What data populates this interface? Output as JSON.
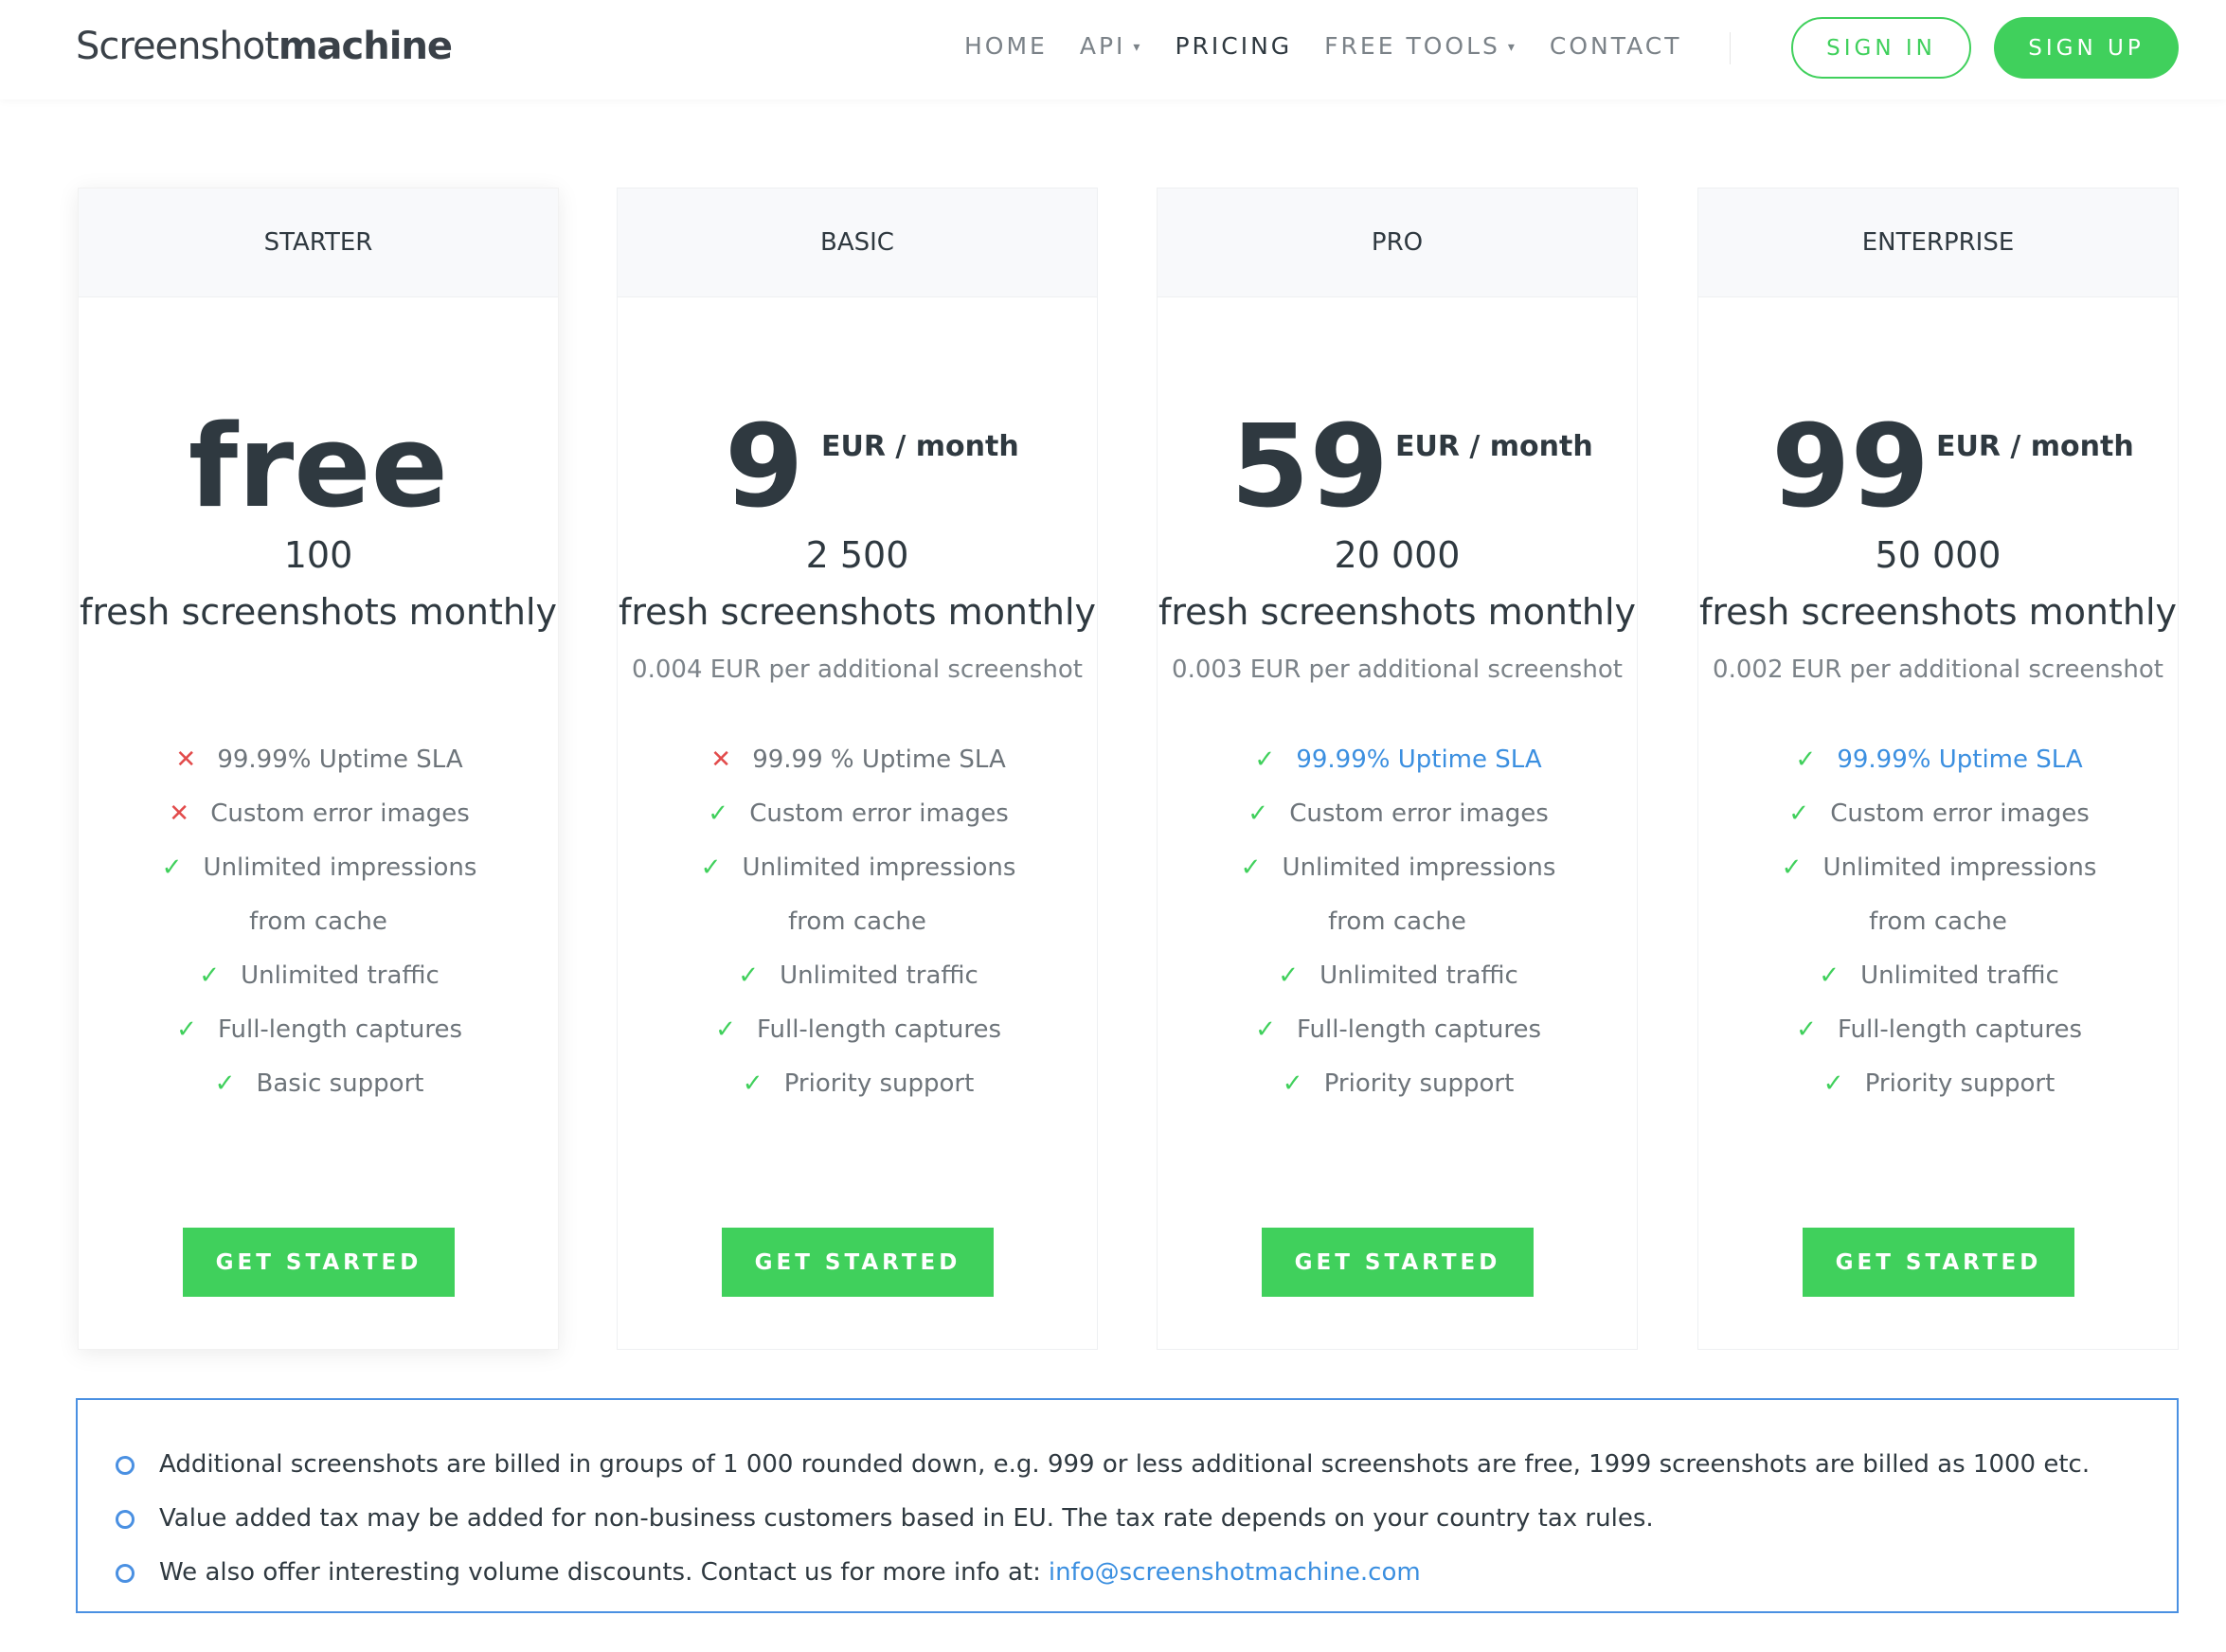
{
  "header": {
    "logo_light": "Screenshot",
    "logo_bold": "machine",
    "nav": [
      {
        "label": "HOME"
      },
      {
        "label": "API",
        "dropdown": true
      },
      {
        "label": "PRICING",
        "active": true
      },
      {
        "label": "FREE TOOLS",
        "dropdown": true
      },
      {
        "label": "CONTACT"
      }
    ],
    "sign_in": "SIGN IN",
    "sign_up": "SIGN UP"
  },
  "colors": {
    "accent_green": "#40d05c",
    "link_blue": "#3b8fe0",
    "cross_red": "#e24b4b"
  },
  "plans": [
    {
      "name": "STARTER",
      "price": "free",
      "unit": "",
      "count": "100",
      "fresh": "fresh screenshots monthly",
      "extra": "",
      "button": "GET STARTED",
      "features": [
        {
          "text": "99.99% Uptime SLA",
          "icon": "cross"
        },
        {
          "text": "Custom error images",
          "icon": "cross"
        },
        {
          "text": "Unlimited impressions",
          "icon": "check"
        },
        {
          "text": "from cache",
          "icon": ""
        },
        {
          "text": "Unlimited traffic",
          "icon": "check"
        },
        {
          "text": "Full-length captures",
          "icon": "check"
        },
        {
          "text": "Basic support",
          "icon": "check"
        }
      ]
    },
    {
      "name": "BASIC",
      "price": "9",
      "unit": "EUR / month",
      "count": "2 500",
      "fresh": "fresh screenshots monthly",
      "extra": "0.004 EUR per additional screenshot",
      "button": "GET STARTED",
      "features": [
        {
          "text": "99.99 % Uptime SLA",
          "icon": "cross"
        },
        {
          "text": "Custom error images",
          "icon": "check"
        },
        {
          "text": "Unlimited impressions",
          "icon": "check"
        },
        {
          "text": "from cache",
          "icon": ""
        },
        {
          "text": "Unlimited traffic",
          "icon": "check"
        },
        {
          "text": "Full-length captures",
          "icon": "check"
        },
        {
          "text": "Priority support",
          "icon": "check"
        }
      ]
    },
    {
      "name": "PRO",
      "price": "59",
      "unit": "EUR / month",
      "count": "20 000",
      "fresh": "fresh screenshots monthly",
      "extra": "0.003 EUR per additional screenshot",
      "button": "GET STARTED",
      "features": [
        {
          "text": "99.99% Uptime SLA",
          "icon": "check",
          "link": true
        },
        {
          "text": "Custom error images",
          "icon": "check"
        },
        {
          "text": "Unlimited impressions",
          "icon": "check"
        },
        {
          "text": "from cache",
          "icon": ""
        },
        {
          "text": "Unlimited traffic",
          "icon": "check"
        },
        {
          "text": "Full-length captures",
          "icon": "check"
        },
        {
          "text": "Priority support",
          "icon": "check"
        }
      ]
    },
    {
      "name": "ENTERPRISE",
      "price": "99",
      "unit": "EUR / month",
      "count": "50 000",
      "fresh": "fresh screenshots monthly",
      "extra": "0.002 EUR per additional screenshot",
      "button": "GET STARTED",
      "features": [
        {
          "text": "99.99% Uptime SLA",
          "icon": "check",
          "link": true
        },
        {
          "text": "Custom error images",
          "icon": "check"
        },
        {
          "text": "Unlimited impressions",
          "icon": "check"
        },
        {
          "text": "from cache",
          "icon": ""
        },
        {
          "text": "Unlimited traffic",
          "icon": "check"
        },
        {
          "text": "Full-length captures",
          "icon": "check"
        },
        {
          "text": "Priority support",
          "icon": "check"
        }
      ]
    }
  ],
  "notes": {
    "items": [
      "Additional screenshots are billed in groups of 1 000 rounded down, e.g. 999 or less additional screenshots are free, 1999 screenshots are billed as 1000 etc.",
      "Value added tax may be added for non-business customers based in EU. The tax rate depends on your country tax rules.",
      "We also offer interesting volume discounts. Contact us for more info at:"
    ],
    "email": "info@screenshotmachine.com"
  }
}
